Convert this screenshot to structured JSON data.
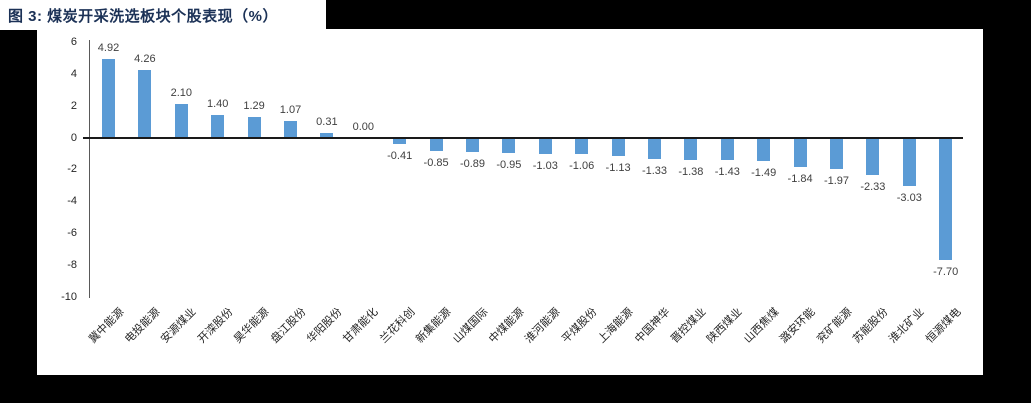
{
  "canvas": {
    "background": "#000000",
    "panel_background": "#ffffff"
  },
  "header": {
    "title": "图 3: 煤炭开采洗选板块个股表现（%）",
    "title_color": "#1B3156"
  },
  "chart_data": {
    "type": "bar",
    "title": "煤炭开采洗选板块个股表现（%）",
    "categories": [
      "冀中能源",
      "电投能源",
      "安源煤业",
      "开滦股份",
      "昊华能源",
      "盘江股份",
      "华阳股份",
      "甘肃能化",
      "兰花科创",
      "新集能源",
      "山煤国际",
      "中煤能源",
      "淮河能源",
      "平煤股份",
      "上海能源",
      "中国神华",
      "晋控煤业",
      "陕西煤业",
      "山西焦煤",
      "潞安环能",
      "兖矿能源",
      "苏能股份",
      "淮北矿业",
      "恒源煤电"
    ],
    "values": [
      4.92,
      4.26,
      2.1,
      1.4,
      1.29,
      1.07,
      0.31,
      0.0,
      -0.41,
      -0.85,
      -0.89,
      -0.95,
      -1.03,
      -1.06,
      -1.13,
      -1.33,
      -1.38,
      -1.43,
      -1.49,
      -1.84,
      -1.97,
      -2.33,
      -3.03,
      -7.7
    ],
    "value_labels": [
      "4.92",
      "4.26",
      "2.10",
      "1.40",
      "1.29",
      "1.07",
      "0.31",
      "0.00",
      "-0.41",
      "-0.85",
      "-0.89",
      "-0.95",
      "-1.03",
      "-1.06",
      "-1.13",
      "-1.33",
      "-1.38",
      "-1.43",
      "-1.49",
      "-1.84",
      "-1.97",
      "-2.33",
      "-3.03",
      "-7.70"
    ],
    "xlabel": "",
    "ylabel": "",
    "ylim": [
      -10,
      6
    ],
    "yticks": [
      6,
      4,
      2,
      0,
      -2,
      -4,
      -6,
      -8,
      -10
    ],
    "grid": false,
    "legend_position": "none",
    "bar_color": "#5B9BD5",
    "value_label_color": "#404040",
    "axis_color": "#595959",
    "zero_line_color": "#1a1a1a",
    "category_rotation_deg": 45
  }
}
